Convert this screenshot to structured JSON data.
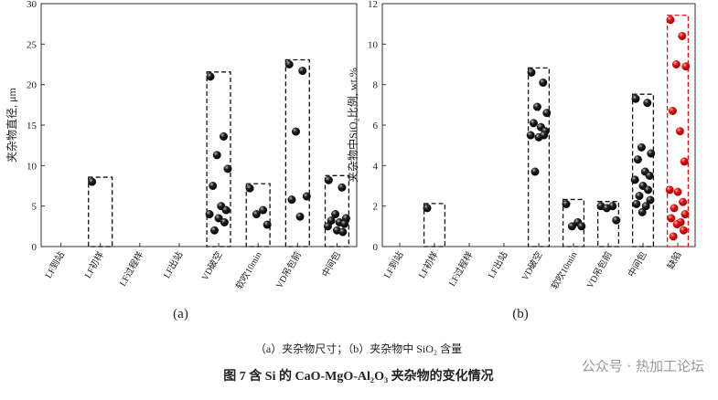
{
  "chart_data": [
    {
      "type": "strip",
      "ylabel": "夹杂物直径, μm",
      "panel_label": "(a)",
      "categories": [
        "LF到站",
        "LF初样",
        "LF过程样",
        "LF出站",
        "VD破空",
        "软吹10min",
        "VD吊包前",
        "中间包"
      ],
      "values": [
        [],
        [
          8
        ],
        [],
        [],
        [
          21,
          13.6,
          11.3,
          9.6,
          7.5,
          5,
          4.5,
          4,
          3.5,
          3,
          2
        ],
        [
          7.2,
          4.5,
          4,
          2.7
        ],
        [
          22.5,
          21.7,
          14.2,
          6.2,
          5.8,
          3.7
        ],
        [
          8.2,
          7.3,
          4,
          3.5,
          3.2,
          3,
          2.8,
          2.5,
          2,
          1.8
        ]
      ],
      "colors": [
        "#111111",
        "#111111",
        "#111111",
        "#111111",
        "#111111",
        "#111111",
        "#111111",
        "#111111"
      ],
      "ylim": [
        0,
        30
      ],
      "yticks": [
        0,
        5,
        10,
        15,
        20,
        25,
        30
      ]
    },
    {
      "type": "strip",
      "ylabel": "夹杂物中SiO₂比例, wt.%",
      "panel_label": "(b)",
      "categories": [
        "LF到站",
        "LF初样",
        "LF过程样",
        "LF出站",
        "VD破空",
        "软吹10min",
        "VD吊包前",
        "中间包",
        "缺陷"
      ],
      "values": [
        [],
        [
          1.9
        ],
        [],
        [],
        [
          8.6,
          8.1,
          6.9,
          6.6,
          6.1,
          5.9,
          5.7,
          5.5,
          5.4,
          5.5,
          3.7
        ],
        [
          2.1,
          1.2,
          1.0,
          1.0
        ],
        [
          2.0,
          2.0,
          1.9,
          1.3
        ],
        [
          7.3,
          7.1,
          4.9,
          4.6,
          4.3,
          3.7,
          3.5,
          3.3,
          3.0,
          2.8,
          2.5,
          2.3,
          2.1,
          2.0,
          1.7
        ],
        [
          11.2,
          10.4,
          9.0,
          8.9,
          6.7,
          5.7,
          4.2,
          2.8,
          2.7,
          2.2,
          1.9,
          1.6,
          1.4,
          1.2,
          1.1,
          0.8,
          0.5
        ]
      ],
      "colors": [
        "#111111",
        "#111111",
        "#111111",
        "#111111",
        "#111111",
        "#111111",
        "#111111",
        "#111111",
        "#e01010"
      ],
      "ylim": [
        0,
        12
      ],
      "yticks": [
        0,
        2,
        4,
        6,
        8,
        10,
        12
      ]
    }
  ],
  "caption": "（a）夹杂物尺寸；（b）夹杂物中 SiO₂ 含量",
  "figure_title": "图 7   含 Si 的 CaO-MgO-Al₂O₃ 夹杂物的变化情况",
  "watermark": "公众号 · 热加工论坛"
}
